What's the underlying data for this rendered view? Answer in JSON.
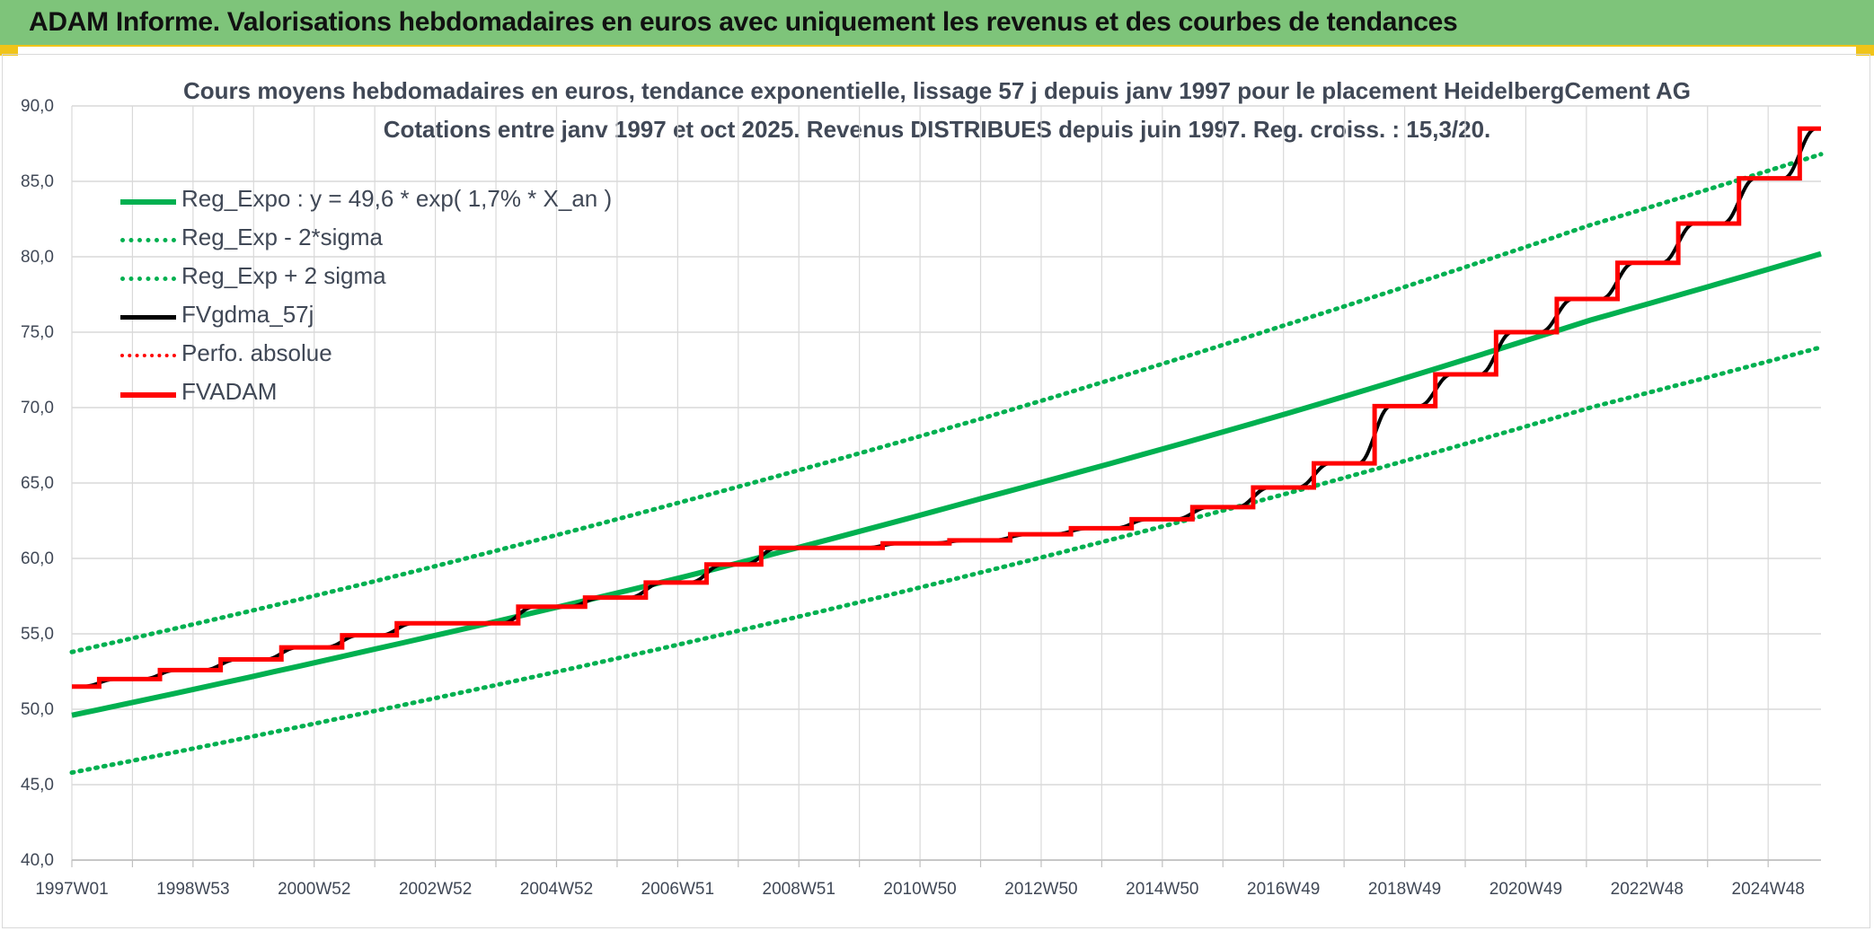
{
  "page": {
    "banner_title": "ADAM Informe. Valorisations hebdomadaires en euros avec uniquement les revenus et des courbes de tendances"
  },
  "chart_data": {
    "type": "line",
    "title": "Cours moyens hebdomadaires en euros, tendance exponentielle, lissage 57 j depuis janv 1997 pour le placement HeidelbergCement AG",
    "subtitle": "Cotations entre janv 1997 et oct 2025. Revenus DISTRIBUES depuis juin 1997. Reg. croiss. : 15,3/20.",
    "xlabel": "",
    "ylabel": "",
    "ylim": [
      40,
      90
    ],
    "xlim": [
      1997.0,
      2025.8
    ],
    "y_ticks": [
      "40,0",
      "45,0",
      "50,0",
      "55,0",
      "60,0",
      "65,0",
      "70,0",
      "75,0",
      "80,0",
      "85,0",
      "90,0"
    ],
    "x_tick_labels": [
      "1997W01",
      "1998W53",
      "2000W52",
      "2002W52",
      "2004W52",
      "2006W51",
      "2008W51",
      "2010W50",
      "2012W50",
      "2014W50",
      "2016W49",
      "2018W49",
      "2020W49",
      "2022W48",
      "2024W48"
    ],
    "grid": true,
    "legend_position": "top-left",
    "colors": {
      "green": "#00b050",
      "black": "#000000",
      "red": "#ff0000"
    },
    "series": [
      {
        "name": "Reg_Expo : y = 49,6 * exp( 1,7% *  X_an )",
        "style": "solid-green",
        "points": [
          [
            1997.0,
            49.6
          ],
          [
            2002.0,
            54.0
          ],
          [
            2007.0,
            58.7
          ],
          [
            2012.0,
            64.0
          ],
          [
            2017.0,
            69.6
          ],
          [
            2022.0,
            75.8
          ],
          [
            2025.8,
            80.2
          ]
        ]
      },
      {
        "name": "Reg_Exp - 2*sigma",
        "style": "dotted-green",
        "points": [
          [
            1997.0,
            45.8
          ],
          [
            2002.0,
            49.9
          ],
          [
            2007.0,
            54.3
          ],
          [
            2012.0,
            59.1
          ],
          [
            2017.0,
            64.3
          ],
          [
            2022.0,
            70.0
          ],
          [
            2025.8,
            74.0
          ]
        ]
      },
      {
        "name": "Reg_Exp + 2 sigma",
        "style": "dotted-green",
        "points": [
          [
            1997.0,
            53.8
          ],
          [
            2002.0,
            58.5
          ],
          [
            2007.0,
            63.7
          ],
          [
            2012.0,
            69.3
          ],
          [
            2017.0,
            75.5
          ],
          [
            2022.0,
            82.1
          ],
          [
            2025.8,
            86.8
          ]
        ]
      },
      {
        "name": "FVgdma_57j",
        "style": "solid-black-smoothed",
        "steps": []
      },
      {
        "name": "Perfo. absolue",
        "style": "dotted-red",
        "points": []
      },
      {
        "name": "FVADAM",
        "style": "step-red",
        "steps": [
          [
            1997.0,
            51.5
          ],
          [
            1997.45,
            52.0
          ],
          [
            1998.45,
            52.6
          ],
          [
            1999.45,
            53.3
          ],
          [
            2000.45,
            54.1
          ],
          [
            2001.45,
            54.9
          ],
          [
            2002.35,
            55.7
          ],
          [
            2004.35,
            56.8
          ],
          [
            2005.45,
            57.4
          ],
          [
            2006.45,
            58.4
          ],
          [
            2007.45,
            59.6
          ],
          [
            2008.35,
            60.7
          ],
          [
            2010.35,
            61.0
          ],
          [
            2011.45,
            61.2
          ],
          [
            2012.45,
            61.6
          ],
          [
            2013.45,
            62.0
          ],
          [
            2014.45,
            62.6
          ],
          [
            2015.45,
            63.4
          ],
          [
            2016.45,
            64.7
          ],
          [
            2017.45,
            66.3
          ],
          [
            2018.45,
            70.1
          ],
          [
            2019.45,
            72.2
          ],
          [
            2020.45,
            75.0
          ],
          [
            2021.45,
            77.2
          ],
          [
            2022.45,
            79.6
          ],
          [
            2023.45,
            82.2
          ],
          [
            2024.45,
            85.2
          ],
          [
            2025.45,
            88.5
          ]
        ],
        "end_x": 2025.8
      }
    ]
  }
}
